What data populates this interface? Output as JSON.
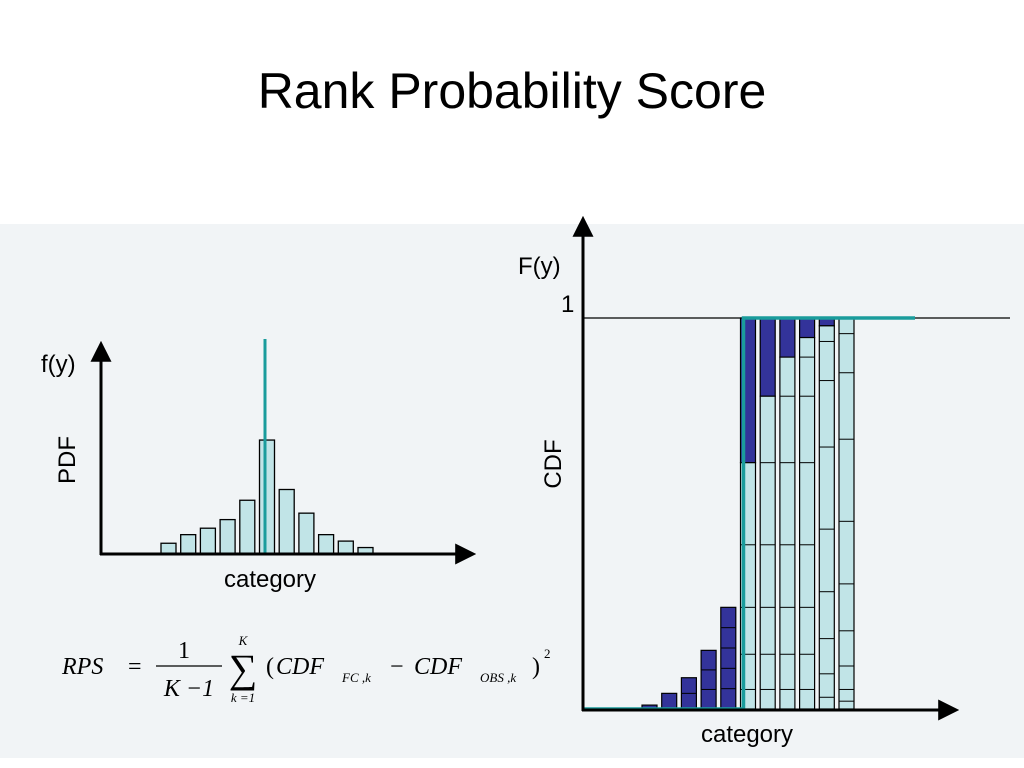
{
  "title": "Rank Probability Score",
  "pdf_chart": {
    "y_label": "PDF",
    "y_axis_symbol": "f(y)",
    "x_label": "category",
    "bar_heights": [
      0.05,
      0.09,
      0.12,
      0.16,
      0.25,
      0.53,
      0.3,
      0.19,
      0.09,
      0.06,
      0.03
    ],
    "observed_category_index": 5,
    "observed_line_height": 1.0,
    "bar_fill": "#c1e4e7",
    "observed_color": "#1a9c9c"
  },
  "cdf_chart": {
    "y_label": "CDF",
    "y_axis_symbol": "F(y)",
    "y_tick_label": "1",
    "x_label": "category",
    "forecast_fill": "#c1e4e7",
    "cdf_difference_fill": "#33339a",
    "observed_color": "#1a9c9c",
    "columns": [
      {
        "cdf_obs": 0,
        "cdf_fc": 0.01,
        "segments": []
      },
      {
        "cdf_obs": 0,
        "cdf_fc": 0.04,
        "segments": []
      },
      {
        "cdf_obs": 0,
        "cdf_fc": 0.08,
        "segments": []
      },
      {
        "cdf_obs": 0,
        "cdf_fc": 0.15,
        "segments": []
      },
      {
        "cdf_obs": 0,
        "cdf_fc": 0.26,
        "segments": []
      },
      {
        "cdf_obs": 1,
        "cdf_fc": 0.63,
        "segments": [
          0.05,
          0.09,
          0.12,
          0.16,
          0.21
        ]
      },
      {
        "cdf_obs": 1,
        "cdf_fc": 0.8,
        "segments": [
          0.05,
          0.09,
          0.12,
          0.16,
          0.21,
          0.17
        ]
      },
      {
        "cdf_obs": 1,
        "cdf_fc": 0.9,
        "segments": [
          0.05,
          0.09,
          0.12,
          0.16,
          0.21,
          0.17,
          0.1
        ]
      },
      {
        "cdf_obs": 1,
        "cdf_fc": 0.95,
        "segments": [
          0.05,
          0.09,
          0.12,
          0.16,
          0.21,
          0.17,
          0.1,
          0.05
        ]
      },
      {
        "cdf_obs": 1,
        "cdf_fc": 0.98,
        "segments": [
          0.03,
          0.06,
          0.09,
          0.12,
          0.16,
          0.21,
          0.17,
          0.1,
          0.03
        ]
      },
      {
        "cdf_obs": 1,
        "cdf_fc": 1.0,
        "segments": [
          0.02,
          0.03,
          0.06,
          0.09,
          0.12,
          0.16,
          0.21,
          0.17,
          0.1,
          0.04
        ]
      }
    ]
  },
  "formula": {
    "lhs": "RPS",
    "eq": "=",
    "numerator": "1",
    "denominator": "K −1",
    "sum_symbol": "∑",
    "sum_upper": "K",
    "sum_lower": "k =1",
    "open_paren": "(",
    "term1": "CDF",
    "term1_sub": "FC ,k",
    "minus": "−",
    "term2": "CDF",
    "term2_sub": "OBS ,k",
    "close_paren": ")",
    "exponent": "2"
  }
}
